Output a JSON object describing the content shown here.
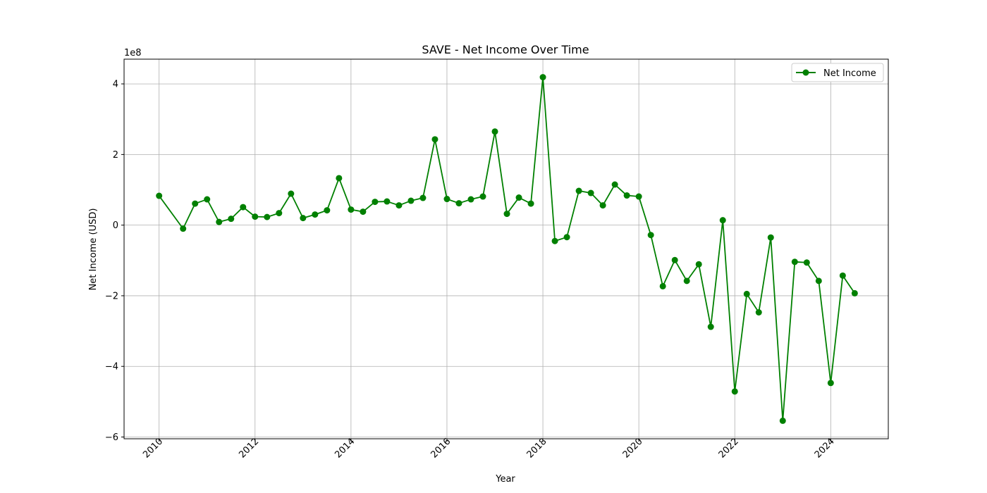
{
  "chart_data": {
    "type": "line",
    "title": "SAVE - Net Income Over Time",
    "xlabel": "Year",
    "ylabel": "Net Income (USD)",
    "y_scale_label": "1e8",
    "xlim": [
      2009.27,
      2025.2
    ],
    "ylim": [
      -6.05,
      4.7
    ],
    "x_ticks": [
      2010,
      2012,
      2014,
      2016,
      2018,
      2020,
      2022,
      2024
    ],
    "x_tick_labels": [
      "2010",
      "2012",
      "2014",
      "2016",
      "2018",
      "2020",
      "2022",
      "2024"
    ],
    "y_ticks": [
      -6,
      -4,
      -2,
      0,
      2,
      4
    ],
    "y_tick_labels": [
      "−6",
      "−4",
      "−2",
      "0",
      "2",
      "4"
    ],
    "grid": true,
    "legend_position": "top-right",
    "colors": {
      "series": "#008000",
      "grid": "#b0b0b0",
      "axis": "#000000"
    },
    "series": [
      {
        "name": "Net Income",
        "marker": "circle",
        "x": [
          2010.0,
          2010.5,
          2010.75,
          2011.0,
          2011.25,
          2011.5,
          2011.75,
          2012.0,
          2012.25,
          2012.5,
          2012.75,
          2013.0,
          2013.25,
          2013.5,
          2013.75,
          2014.0,
          2014.25,
          2014.5,
          2014.75,
          2015.0,
          2015.25,
          2015.5,
          2015.75,
          2016.0,
          2016.25,
          2016.5,
          2016.75,
          2017.0,
          2017.25,
          2017.5,
          2017.75,
          2018.0,
          2018.25,
          2018.5,
          2018.75,
          2019.0,
          2019.25,
          2019.5,
          2019.75,
          2020.0,
          2020.25,
          2020.5,
          2020.75,
          2021.0,
          2021.25,
          2021.5,
          2021.75,
          2022.0,
          2022.25,
          2022.5,
          2022.75,
          2023.0,
          2023.25,
          2023.5,
          2023.75,
          2024.0,
          2024.25,
          2024.5
        ],
        "y": [
          0.83,
          -0.1,
          0.61,
          0.73,
          0.09,
          0.18,
          0.51,
          0.24,
          0.23,
          0.34,
          0.89,
          0.2,
          0.3,
          0.42,
          1.33,
          0.44,
          0.38,
          0.66,
          0.67,
          0.56,
          0.69,
          0.77,
          2.43,
          0.74,
          0.62,
          0.73,
          0.81,
          2.65,
          0.32,
          0.78,
          0.61,
          4.19,
          -0.45,
          -0.34,
          0.97,
          0.91,
          0.56,
          1.15,
          0.84,
          0.81,
          -0.28,
          -1.73,
          -0.99,
          -1.58,
          -1.11,
          -2.88,
          0.14,
          -4.71,
          -1.95,
          -2.47,
          -0.35,
          -5.54,
          -1.04,
          -1.06,
          -1.58,
          -4.47,
          -1.43,
          -1.93
        ]
      }
    ]
  }
}
